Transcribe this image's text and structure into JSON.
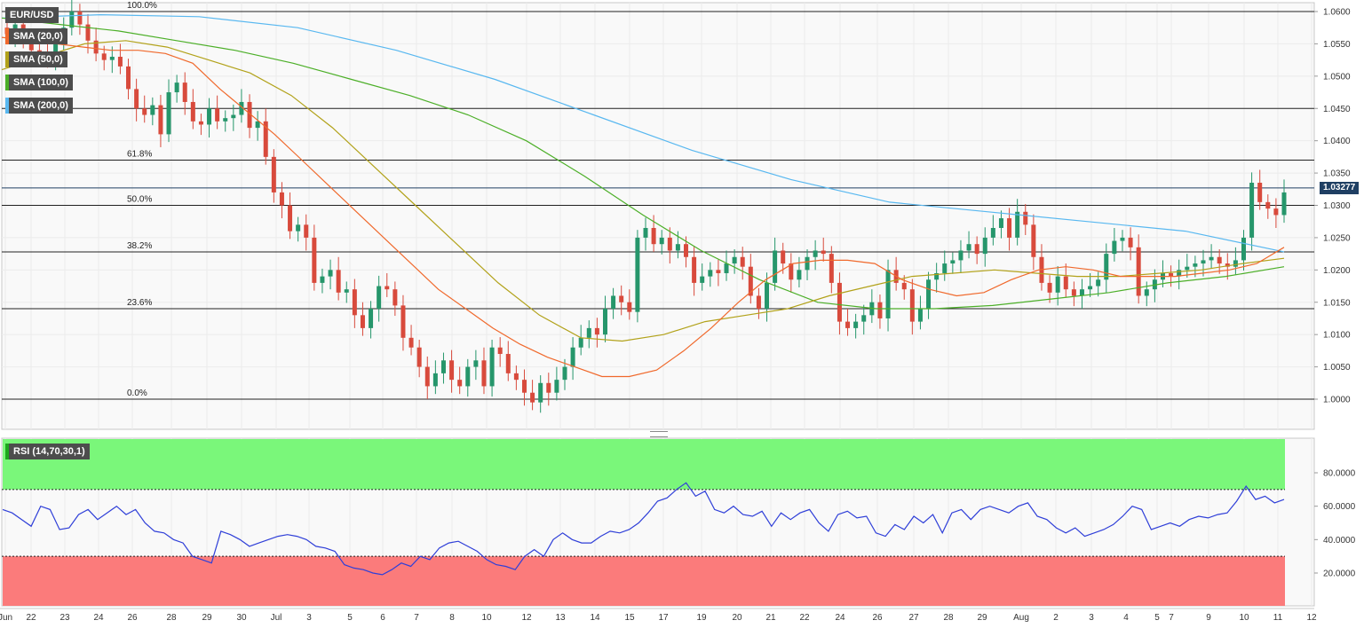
{
  "symbol": "EUR/USD",
  "indicators": [
    {
      "label": "SMA (20,0)",
      "color": "#f0692c"
    },
    {
      "label": "SMA (50,0)",
      "color": "#b2a21a"
    },
    {
      "label": "SMA (100,0)",
      "color": "#4caf28"
    },
    {
      "label": "SMA (200,0)",
      "color": "#59b8f0"
    }
  ],
  "last_price": "1.03277",
  "rsi_label": "RSI (14,70,30,1)",
  "chart_data": [
    {
      "type": "candlestick",
      "pair": "EUR/USD",
      "timeframe": "4h",
      "ylim": [
        0.9952,
        1.0605
      ],
      "price_ticks": [
        "1.0600",
        "1.0550",
        "1.0500",
        "1.0450",
        "1.0400",
        "1.0350",
        "1.0300",
        "1.0250",
        "1.0200",
        "1.0150",
        "1.0100",
        "1.0050",
        "1.0000"
      ],
      "x_ticks": [
        "Jun",
        "22",
        "23",
        "24",
        "26",
        "28",
        "29",
        "30",
        "Jul",
        "3",
        "5",
        "6",
        "7",
        "8",
        "10",
        "12",
        "13",
        "14",
        "15",
        "17",
        "19",
        "20",
        "21",
        "22",
        "24",
        "26",
        "27",
        "28",
        "29",
        "Aug",
        "2",
        "3",
        "4",
        "5",
        "7",
        "9",
        "10",
        "11",
        "12"
      ],
      "horizontal_levels": [
        1.06,
        1.045,
        1.037,
        1.0327,
        1.03,
        1.0228,
        1.014,
        1.0
      ],
      "fibonacci": [
        {
          "label": "100.0%",
          "value": 1.06
        },
        {
          "label": "61.8%",
          "value": 1.037
        },
        {
          "label": "50.0%",
          "value": 1.03
        },
        {
          "label": "38.2%",
          "value": 1.0228
        },
        {
          "label": "23.6%",
          "value": 1.014
        },
        {
          "label": "0.0%",
          "value": 1.0
        }
      ],
      "close_path": [
        1.0565,
        1.058,
        1.0555,
        1.054,
        1.0535,
        1.0525,
        1.056,
        1.0575,
        1.06,
        1.058,
        1.0555,
        1.0535,
        1.0525,
        1.053,
        1.0515,
        1.048,
        1.045,
        1.044,
        1.0455,
        1.041,
        1.0475,
        1.049,
        1.046,
        1.043,
        1.0425,
        1.045,
        1.043,
        1.0435,
        1.044,
        1.046,
        1.042,
        1.043,
        1.0375,
        1.032,
        1.03,
        1.026,
        1.027,
        1.025,
        1.018,
        1.019,
        1.02,
        1.0165,
        1.017,
        1.013,
        1.011,
        1.014,
        1.0175,
        1.017,
        1.0145,
        1.0095,
        1.008,
        1.005,
        1.002,
        1.004,
        1.006,
        1.003,
        1.002,
        1.005,
        1.006,
        1.002,
        1.008,
        1.007,
        1.004,
        1.003,
        1.001,
        0.9995,
        1.0025,
        1.001,
        1.003,
        1.005,
        1.008,
        1.0095,
        1.011,
        1.01,
        1.014,
        1.016,
        1.015,
        1.0135,
        1.025,
        1.0265,
        1.024,
        1.025,
        1.023,
        1.024,
        1.022,
        1.018,
        1.019,
        1.02,
        1.0195,
        1.021,
        1.022,
        1.0205,
        1.016,
        1.014,
        1.018,
        1.023,
        1.021,
        1.0185,
        1.02,
        1.022,
        1.023,
        1.0225,
        1.018,
        1.012,
        1.011,
        1.012,
        1.013,
        1.015,
        1.0125,
        1.02,
        1.018,
        1.017,
        1.012,
        1.014,
        1.0185,
        1.0195,
        1.021,
        1.0215,
        1.023,
        1.024,
        1.0225,
        1.025,
        1.0265,
        1.028,
        1.025,
        1.029,
        1.027,
        1.022,
        1.018,
        1.0165,
        1.019,
        1.017,
        1.016,
        1.017,
        1.0175,
        1.0185,
        1.0225,
        1.0245,
        1.025,
        1.0235,
        1.016,
        1.017,
        1.0185,
        1.0195,
        1.019,
        1.02,
        1.0205,
        1.021,
        1.0215,
        1.022,
        1.021,
        1.0205,
        1.0215,
        1.025,
        1.0335,
        1.0305,
        1.0295,
        1.0285,
        1.032
      ],
      "sma_20": [
        1.056,
        1.0555,
        1.055,
        1.0545,
        1.054,
        1.054,
        1.0535,
        1.052,
        1.048,
        1.0445,
        1.041,
        1.037,
        1.033,
        1.029,
        1.025,
        1.021,
        1.017,
        1.014,
        1.011,
        1.0085,
        1.0065,
        1.005,
        1.0035,
        1.0035,
        1.0045,
        1.0075,
        1.011,
        1.015,
        1.0185,
        1.021,
        1.0215,
        1.0215,
        1.021,
        1.0185,
        1.017,
        1.016,
        1.0165,
        1.0185,
        1.02,
        1.0205,
        1.02,
        1.019,
        1.019,
        1.019,
        1.0195,
        1.02,
        1.021,
        1.0235
      ],
      "sma_50": [
        1.051,
        1.053,
        1.055,
        1.0555,
        1.0545,
        1.0525,
        1.0505,
        1.047,
        1.042,
        1.036,
        1.03,
        1.024,
        1.018,
        1.013,
        1.0095,
        1.009,
        1.01,
        1.012,
        1.013,
        1.014,
        1.016,
        1.0175,
        1.019,
        1.0195,
        1.02,
        1.0195,
        1.019,
        1.019,
        1.0195,
        1.02,
        1.021,
        1.0218
      ],
      "sma_100": [
        1.059,
        1.058,
        1.057,
        1.0555,
        1.054,
        1.052,
        1.0495,
        1.047,
        1.044,
        1.04,
        1.0345,
        1.0285,
        1.023,
        1.0185,
        1.015,
        1.014,
        1.014,
        1.0145,
        1.0155,
        1.0165,
        1.018,
        1.019,
        1.0205
      ],
      "sma_200": [
        1.059,
        1.0595,
        1.0592,
        1.0575,
        1.054,
        1.0495,
        1.044,
        1.0385,
        1.034,
        1.0305,
        1.029,
        1.0275,
        1.026,
        1.0228
      ]
    },
    {
      "type": "line",
      "series": [
        {
          "name": "RSI (14,70,30,1)",
          "values": [
            58,
            56,
            52,
            48,
            60,
            58,
            46,
            47,
            55,
            58,
            52,
            56,
            60,
            55,
            58,
            50,
            45,
            44,
            40,
            38,
            30,
            28,
            26,
            45,
            43,
            40,
            36,
            38,
            40,
            42,
            43,
            42,
            40,
            36,
            35,
            33,
            25,
            23,
            22,
            20,
            19,
            22,
            26,
            24,
            30,
            28,
            35,
            38,
            39,
            36,
            33,
            28,
            25,
            24,
            22,
            30,
            34,
            30,
            40,
            44,
            40,
            38,
            38,
            42,
            45,
            44,
            46,
            50,
            56,
            63,
            65,
            70,
            74,
            66,
            69,
            58,
            56,
            60,
            55,
            54,
            57,
            48,
            56,
            52,
            56,
            58,
            50,
            45,
            55,
            57,
            53,
            54,
            44,
            42,
            49,
            46,
            54,
            50,
            55,
            44,
            56,
            58,
            52,
            58,
            60,
            58,
            56,
            60,
            62,
            54,
            52,
            47,
            44,
            47,
            42,
            44,
            46,
            49,
            54,
            60,
            58,
            46,
            48,
            50,
            48,
            52,
            54,
            53,
            55,
            56,
            63,
            72,
            64,
            66,
            62,
            64
          ]
        }
      ],
      "ylim": [
        0,
        100
      ],
      "y_ticks": [
        "80.0000",
        "60.0000",
        "40.0000",
        "20.0000"
      ],
      "overbought": 70,
      "oversold": 30
    }
  ]
}
